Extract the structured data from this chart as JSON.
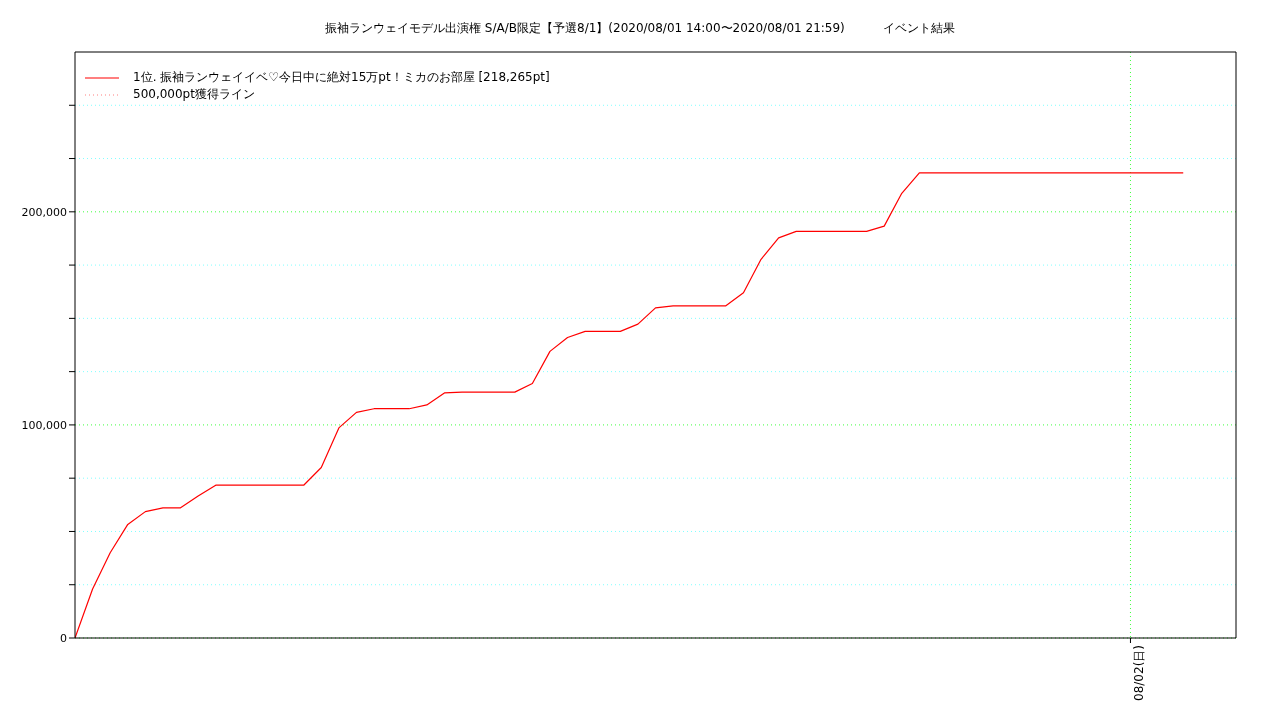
{
  "chart_data": {
    "type": "line",
    "title": "振袖ランウェイモデル出演権 S/A/B限定【予選8/1】(2020/08/01 14:00〜2020/08/01 21:59)          イベント結果",
    "categories": [
      null,
      null,
      null,
      null,
      null,
      null,
      null,
      null,
      null,
      null,
      null,
      null,
      null,
      null,
      null,
      null,
      null,
      null,
      null,
      null,
      null,
      null,
      null,
      null,
      null,
      null,
      null,
      null,
      null,
      null,
      null,
      null,
      null,
      null,
      null,
      null,
      null,
      null,
      null,
      null,
      null,
      null,
      null,
      null,
      null,
      null,
      null,
      null,
      null,
      null,
      null,
      null,
      null,
      null,
      null,
      null,
      null,
      null,
      null,
      null,
      "08/02(日)",
      null,
      null,
      null,
      null,
      null,
      null
    ],
    "series": [
      {
        "name": "1位. 振袖ランウェイイベ♡今日中に絶対15万pt！ミカのお部屋 [218,265pt]",
        "color": "#ff0000",
        "line_style": "solid",
        "values": [
          0,
          23000,
          40000,
          53300,
          59300,
          61100,
          61100,
          66600,
          71700,
          71700,
          71700,
          71700,
          71700,
          71700,
          80000,
          98600,
          105900,
          107600,
          107600,
          107600,
          109400,
          115000,
          115400,
          115400,
          115400,
          115400,
          119400,
          134500,
          141000,
          143900,
          143900,
          143900,
          147300,
          154900,
          155900,
          155900,
          155900,
          155900,
          162000,
          177700,
          187800,
          190800,
          190800,
          190800,
          190800,
          190800,
          193300,
          208700,
          218265,
          218265,
          218265,
          218265,
          218265,
          218265,
          218265,
          218265,
          218265,
          218265,
          218265,
          218265,
          218265,
          218265,
          218265,
          218265,
          null,
          null,
          null
        ]
      },
      {
        "name": "500,000pt獲得ライン",
        "color": "#ff8080",
        "line_style": "dotted",
        "values": [
          null,
          null,
          null,
          null,
          null,
          null,
          null,
          null,
          null,
          null,
          null,
          null,
          null,
          null,
          null,
          null,
          null,
          null,
          null,
          null,
          null,
          null,
          null,
          null,
          null,
          null,
          null,
          null,
          null,
          null,
          null,
          null,
          null,
          null,
          null,
          null,
          null,
          null,
          null,
          null,
          null,
          null,
          null,
          null,
          null,
          null,
          null,
          null,
          null,
          null,
          null,
          null,
          null,
          null,
          null,
          null,
          null,
          null,
          null,
          null,
          null,
          null,
          null,
          null,
          null,
          null,
          null
        ]
      }
    ],
    "ylim": [
      0,
      275000
    ],
    "yticks": [
      {
        "value": 0,
        "label": "0"
      },
      {
        "value": 25000,
        "label": null
      },
      {
        "value": 50000,
        "label": null
      },
      {
        "value": 75000,
        "label": null
      },
      {
        "value": 100000,
        "label": "100,000"
      },
      {
        "value": 125000,
        "label": null
      },
      {
        "value": 150000,
        "label": null
      },
      {
        "value": 175000,
        "label": null
      },
      {
        "value": 200000,
        "label": "200,000"
      },
      {
        "value": 225000,
        "label": null
      },
      {
        "value": 250000,
        "label": null
      }
    ],
    "grid": true,
    "legend": "top left",
    "marker": "none"
  }
}
